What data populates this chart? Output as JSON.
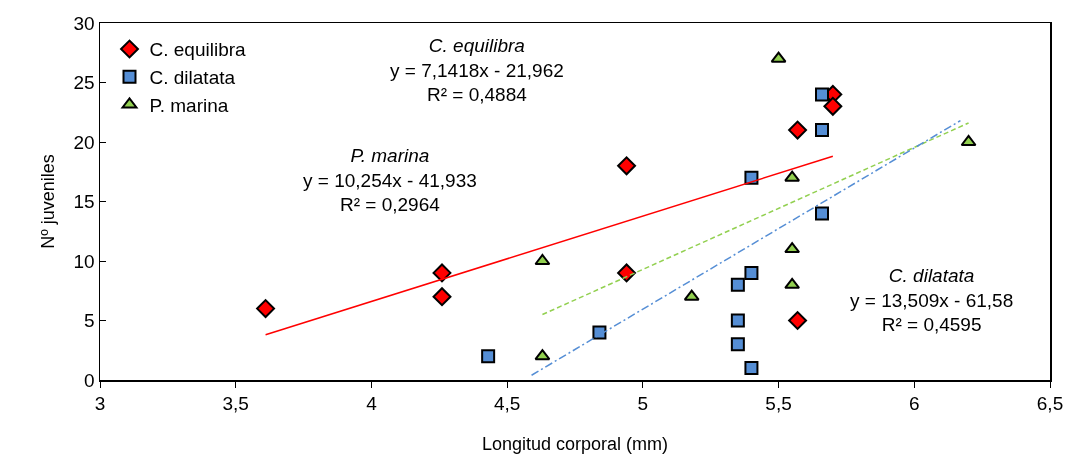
{
  "chart_data": {
    "type": "scatter",
    "xlabel": "Longitud corporal (mm)",
    "ylabel": "Nº juveniles",
    "xlim": [
      3,
      6.5
    ],
    "xticks": [
      3,
      {
        "value": 3.5,
        "label": "3,5"
      },
      4,
      {
        "value": 4.5,
        "label": "4,5"
      },
      5,
      {
        "value": 5.5,
        "label": "5,5"
      },
      6,
      {
        "value": 6.5,
        "label": "6,5"
      }
    ],
    "ylim": [
      0,
      30
    ],
    "yticks": [
      0,
      5,
      10,
      15,
      20,
      25,
      30
    ],
    "grid": false,
    "legend": "top left",
    "series": [
      {
        "name": "C. equilibra",
        "color": "#ff0000",
        "marker": "diamond",
        "x": [
          3.61,
          4.26,
          4.26,
          4.94,
          4.94,
          5.57,
          5.57,
          5.7,
          5.7
        ],
        "values": [
          6,
          9,
          7,
          18,
          9,
          21,
          5,
          24,
          23
        ]
      },
      {
        "name": "C. dilatata",
        "color": "#558ed5",
        "marker": "square",
        "x": [
          4.43,
          4.84,
          5.4,
          5.4,
          5.35,
          5.35,
          5.35,
          5.4,
          5.66,
          5.66,
          5.66
        ],
        "values": [
          2,
          4,
          17,
          9,
          8,
          5,
          3,
          1,
          24,
          21,
          14
        ]
      },
      {
        "name": "P. marina",
        "color": "#92d050",
        "marker": "triangle",
        "x": [
          4.63,
          4.63,
          5.5,
          5.55,
          5.55,
          5.55,
          5.18,
          6.2
        ],
        "values": [
          10,
          2,
          27,
          17,
          11,
          8,
          7,
          20
        ]
      },
      {
        "type": "line",
        "color": "#ff0000",
        "line_style": "solid",
        "x": [
          3.61,
          5.7
        ],
        "values": [
          3.8,
          18.8
        ]
      },
      {
        "type": "line",
        "color": "#92d050",
        "line_style": "dashed",
        "x": [
          4.63,
          6.2
        ],
        "values": [
          5.5,
          21.6
        ]
      },
      {
        "type": "line",
        "color": "#558ed5",
        "line_style": "dashdot",
        "x": [
          4.59,
          6.17
        ],
        "values": [
          0.4,
          21.8
        ]
      }
    ],
    "annotations": [
      "C. equilibra\ny = 7,1418x - 21,962\nR² = 0,4884",
      "P. marina\ny = 10,254x - 41,933\nR² = 0,2964",
      "C. dilatata\ny = 13,509x - 61,58\nR² = 0,4595"
    ]
  }
}
